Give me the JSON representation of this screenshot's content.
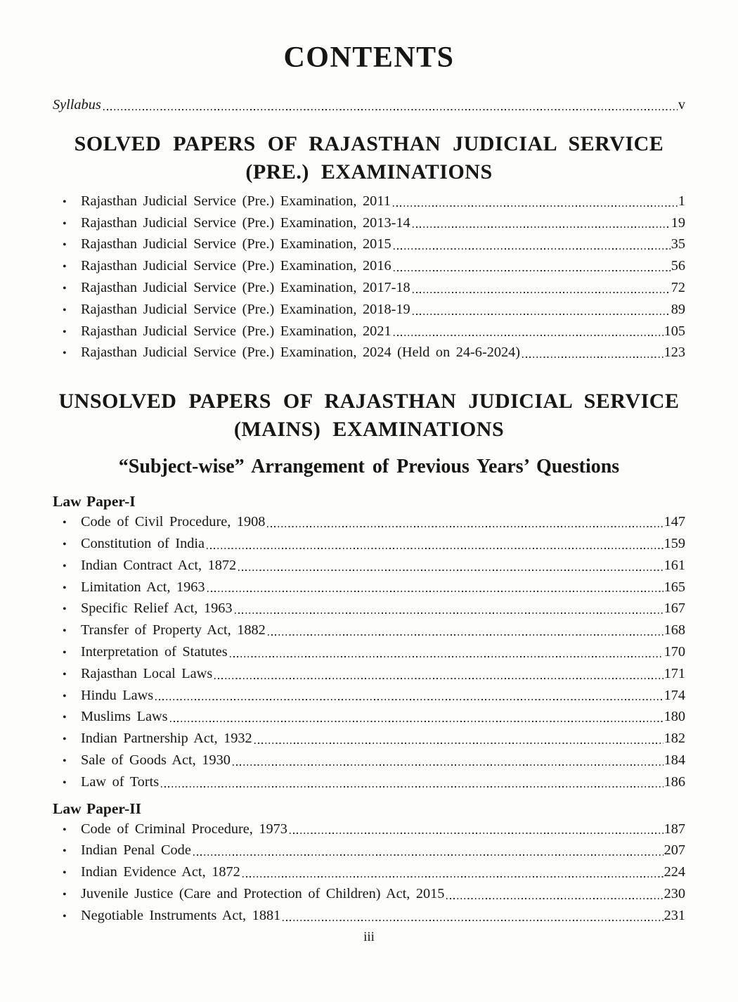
{
  "page": {
    "title": "CONTENTS",
    "footer": "iii"
  },
  "syllabus": {
    "label": "Syllabus",
    "page": "v"
  },
  "solved": {
    "heading1": "SOLVED PAPERS OF RAJASTHAN JUDICIAL SERVICE",
    "heading2": "(PRE.) EXAMINATIONS",
    "entries": [
      {
        "label": "Rajasthan Judicial Service (Pre.) Examination, 2011",
        "page": "1"
      },
      {
        "label": "Rajasthan Judicial Service (Pre.) Examination, 2013-14",
        "page": "19"
      },
      {
        "label": "Rajasthan Judicial Service (Pre.) Examination, 2015",
        "page": "35"
      },
      {
        "label": "Rajasthan Judicial Service (Pre.) Examination, 2016",
        "page": "56"
      },
      {
        "label": "Rajasthan Judicial Service (Pre.) Examination, 2017-18",
        "page": "72"
      },
      {
        "label": "Rajasthan Judicial Service (Pre.) Examination, 2018-19",
        "page": "89"
      },
      {
        "label": "Rajasthan Judicial Service (Pre.) Examination, 2021",
        "page": "105"
      },
      {
        "label": "Rajasthan Judicial Service (Pre.) Examination, 2024 (Held on 24-6-2024)",
        "page": "123"
      }
    ]
  },
  "unsolved": {
    "heading1": "UNSOLVED PAPERS OF RAJASTHAN JUDICIAL SERVICE",
    "heading2": "(MAINS) EXAMINATIONS",
    "subheading": "“Subject-wise” Arrangement of Previous Years’ Questions",
    "paper1": {
      "title": "Law Paper-I",
      "entries": [
        {
          "label": "Code of Civil Procedure, 1908",
          "page": "147"
        },
        {
          "label": "Constitution of India",
          "page": "159"
        },
        {
          "label": "Indian Contract Act, 1872",
          "page": "161"
        },
        {
          "label": "Limitation Act, 1963",
          "page": "165"
        },
        {
          "label": "Specific Relief Act, 1963",
          "page": "167"
        },
        {
          "label": "Transfer of Property Act, 1882",
          "page": "168"
        },
        {
          "label": "Interpretation of Statutes",
          "page": "170"
        },
        {
          "label": "Rajasthan Local Laws",
          "page": "171"
        },
        {
          "label": "Hindu Laws",
          "page": "174"
        },
        {
          "label": "Muslims Laws",
          "page": "180"
        },
        {
          "label": "Indian Partnership Act, 1932",
          "page": "182"
        },
        {
          "label": "Sale of Goods Act, 1930",
          "page": "184"
        },
        {
          "label": "Law of Torts",
          "page": "186"
        }
      ]
    },
    "paper2": {
      "title": "Law Paper-II",
      "entries": [
        {
          "label": "Code of Criminal Procedure, 1973",
          "page": "187"
        },
        {
          "label": "Indian Penal Code",
          "page": "207"
        },
        {
          "label": "Indian Evidence Act, 1872",
          "page": "224"
        },
        {
          "label": "Juvenile Justice (Care and Protection of Children) Act, 2015",
          "page": "230"
        },
        {
          "label": "Negotiable Instruments Act, 1881",
          "page": "231"
        }
      ]
    }
  }
}
